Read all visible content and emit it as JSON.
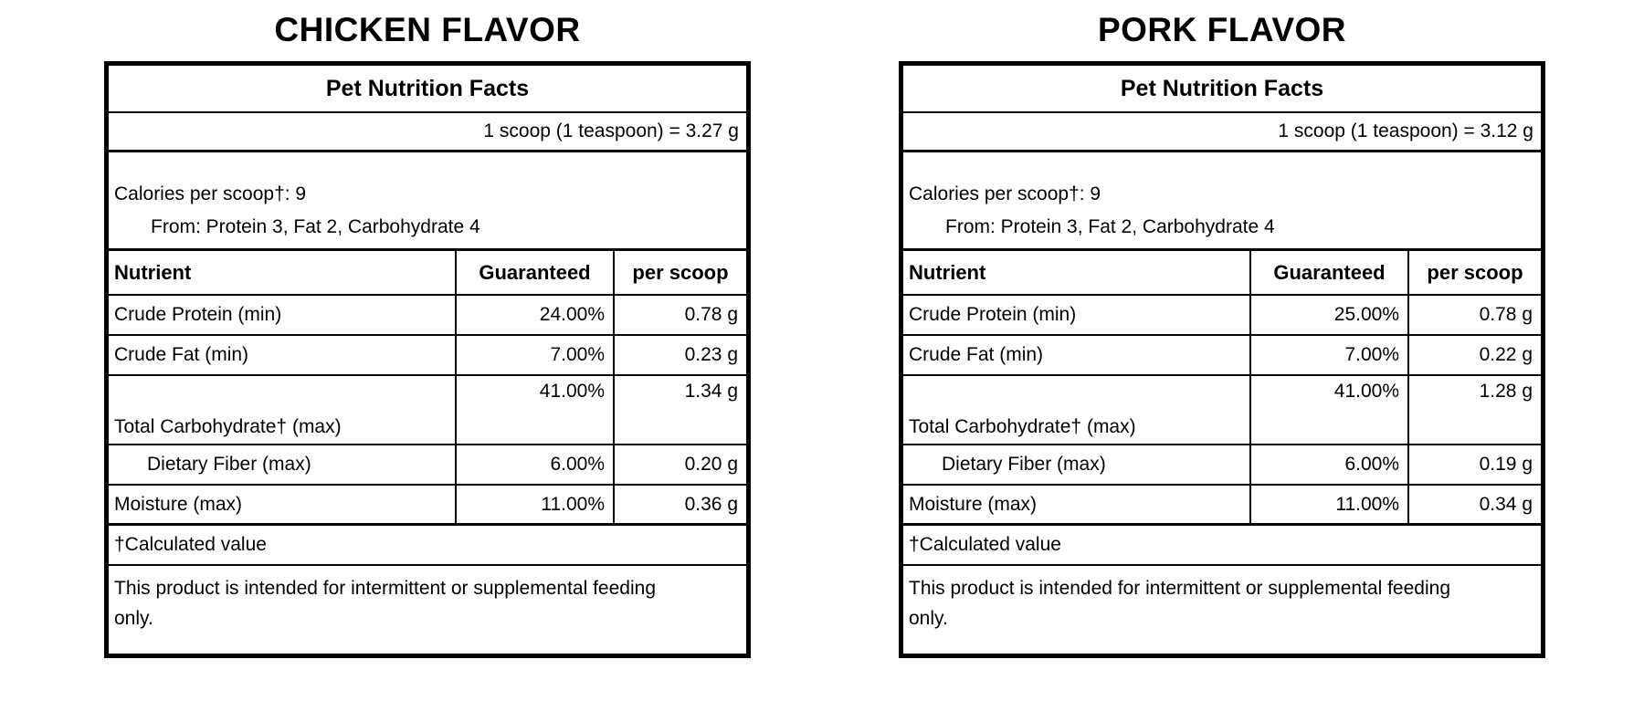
{
  "page": {
    "background": "#ffffff",
    "text_color": "#000000",
    "border_color": "#000000"
  },
  "labels": [
    {
      "title": "CHICKEN FLAVOR",
      "facts_title": "Pet Nutrition Facts",
      "serving": "1 scoop (1 teaspoon) = 3.27 g",
      "calories_line": "Calories per scoop†: 9",
      "calories_from": "From: Protein 3, Fat 2, Carbohydrate 4",
      "columns": {
        "nutrient": "Nutrient",
        "guaranteed": "Guaranteed",
        "per_scoop": "per scoop"
      },
      "rows": [
        {
          "nutrient": "Crude Protein (min)",
          "guaranteed": "24.00%",
          "per_scoop": "0.78 g"
        },
        {
          "nutrient": "Crude Fat (min)",
          "guaranteed": "7.00%",
          "per_scoop": "0.23 g"
        },
        {
          "nutrient": "Total Carbohydrate† (max)",
          "guaranteed": "41.00%",
          "per_scoop": "1.34 g"
        },
        {
          "nutrient": "Dietary Fiber (max)",
          "guaranteed": "6.00%",
          "per_scoop": "0.20 g"
        },
        {
          "nutrient": "Moisture (max)",
          "guaranteed": "11.00%",
          "per_scoop": "0.36 g"
        }
      ],
      "footnote": "†Calculated value",
      "disclaimer": "This product is intended for intermittent or supplemental feeding only."
    },
    {
      "title": "PORK FLAVOR",
      "facts_title": "Pet Nutrition Facts",
      "serving": "1 scoop (1 teaspoon) = 3.12 g",
      "calories_line": "Calories per scoop†: 9",
      "calories_from": "From: Protein 3, Fat 2, Carbohydrate 4",
      "columns": {
        "nutrient": "Nutrient",
        "guaranteed": "Guaranteed",
        "per_scoop": "per scoop"
      },
      "rows": [
        {
          "nutrient": "Crude Protein (min)",
          "guaranteed": "25.00%",
          "per_scoop": "0.78 g"
        },
        {
          "nutrient": "Crude Fat (min)",
          "guaranteed": "7.00%",
          "per_scoop": "0.22 g"
        },
        {
          "nutrient": "Total Carbohydrate† (max)",
          "guaranteed": "41.00%",
          "per_scoop": "1.28 g"
        },
        {
          "nutrient": "Dietary Fiber (max)",
          "guaranteed": "6.00%",
          "per_scoop": "0.19 g"
        },
        {
          "nutrient": "Moisture (max)",
          "guaranteed": "11.00%",
          "per_scoop": "0.34 g"
        }
      ],
      "footnote": "†Calculated value",
      "disclaimer": "This product is intended for intermittent or supplemental feeding only."
    }
  ]
}
